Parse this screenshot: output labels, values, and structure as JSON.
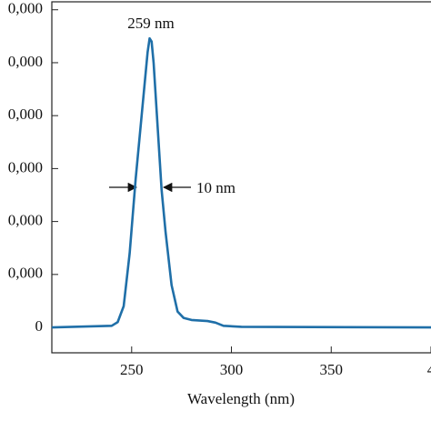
{
  "chart_data": {
    "type": "line",
    "x_label": "Wavelength (nm)",
    "annotations": [
      "259 nm",
      "10 nm"
    ],
    "x": [
      210,
      240,
      243,
      246,
      249,
      252,
      254,
      256,
      258,
      259,
      260,
      261,
      263,
      265,
      267,
      270,
      273,
      276,
      280,
      288,
      292,
      296,
      305,
      400
    ],
    "series": [
      {
        "name": null,
        "color": "#1f6fa8",
        "values": [
          0,
          300,
          1000,
          4000,
          14000,
          28000,
          36000,
          44000,
          52000,
          54600,
          54000,
          50000,
          38000,
          26000,
          18000,
          8000,
          3000,
          1800,
          1400,
          1200,
          900,
          300,
          100,
          0
        ]
      }
    ],
    "xlim": [
      210,
      400
    ],
    "ylim": [
      -4800,
      61500
    ],
    "xticks": [
      250,
      300,
      350,
      {
        "value": 400,
        "label": "4"
      }
    ],
    "yticks": [
      {
        "value": 0,
        "label": "0"
      },
      {
        "value": 10000,
        "label": "0,000"
      },
      {
        "value": 20000,
        "label": "0,000"
      },
      {
        "value": 30000,
        "label": "0,000"
      },
      {
        "value": 40000,
        "label": "0,000"
      },
      {
        "value": 50000,
        "label": "0,000"
      },
      {
        "value": 60000,
        "label": "0,000"
      }
    ]
  }
}
